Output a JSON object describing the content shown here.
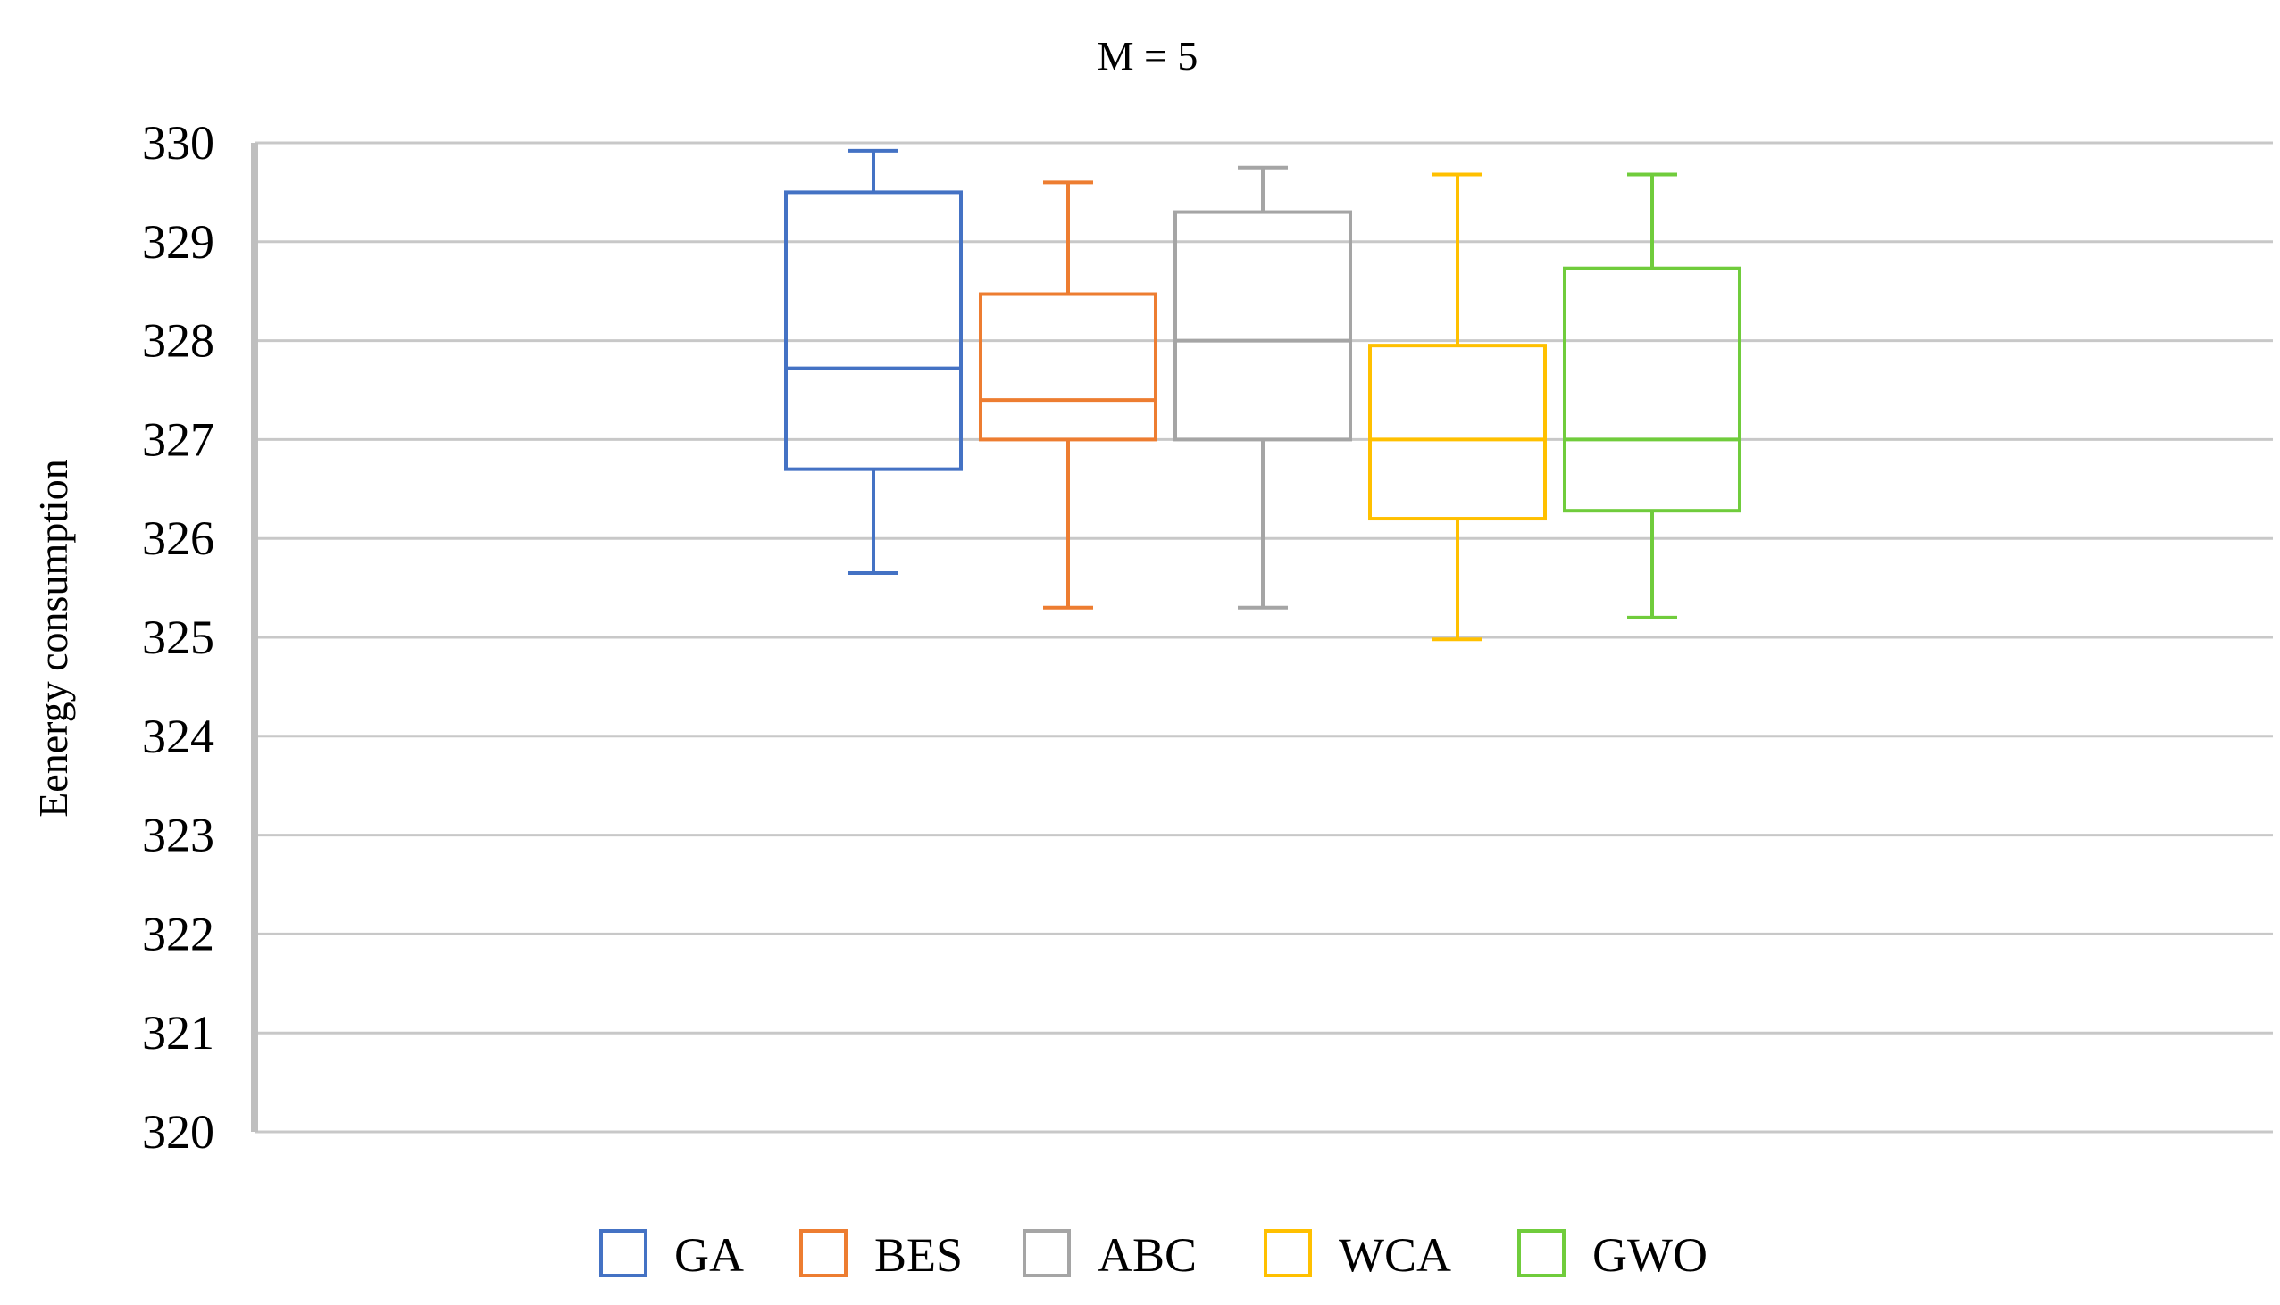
{
  "chart_data": {
    "type": "box",
    "title": "M = 5",
    "ylabel": "Eenergy consumption",
    "xlabel": "",
    "ylim": [
      320,
      330
    ],
    "yticks": [
      320,
      321,
      322,
      323,
      324,
      325,
      326,
      327,
      328,
      329,
      330
    ],
    "grid": true,
    "legend_position": "bottom",
    "series": [
      {
        "name": "GA",
        "color": "#4472C4",
        "min": 325.65,
        "q1": 326.7,
        "median": 327.72,
        "q3": 329.5,
        "max": 329.92
      },
      {
        "name": "BES",
        "color": "#ED7D31",
        "min": 325.3,
        "q1": 327.0,
        "median": 327.4,
        "q3": 328.47,
        "max": 329.6
      },
      {
        "name": "ABC",
        "color": "#A5A5A5",
        "min": 325.3,
        "q1": 327.0,
        "median": 328.0,
        "q3": 329.3,
        "max": 329.75
      },
      {
        "name": "WCA",
        "color": "#FFC000",
        "min": 324.98,
        "q1": 326.2,
        "median": 327.0,
        "q3": 327.95,
        "max": 329.68
      },
      {
        "name": "GWO",
        "color": "#70CC3C",
        "min": 325.2,
        "q1": 326.28,
        "median": 327.0,
        "q3": 328.73,
        "max": 329.68
      }
    ]
  }
}
